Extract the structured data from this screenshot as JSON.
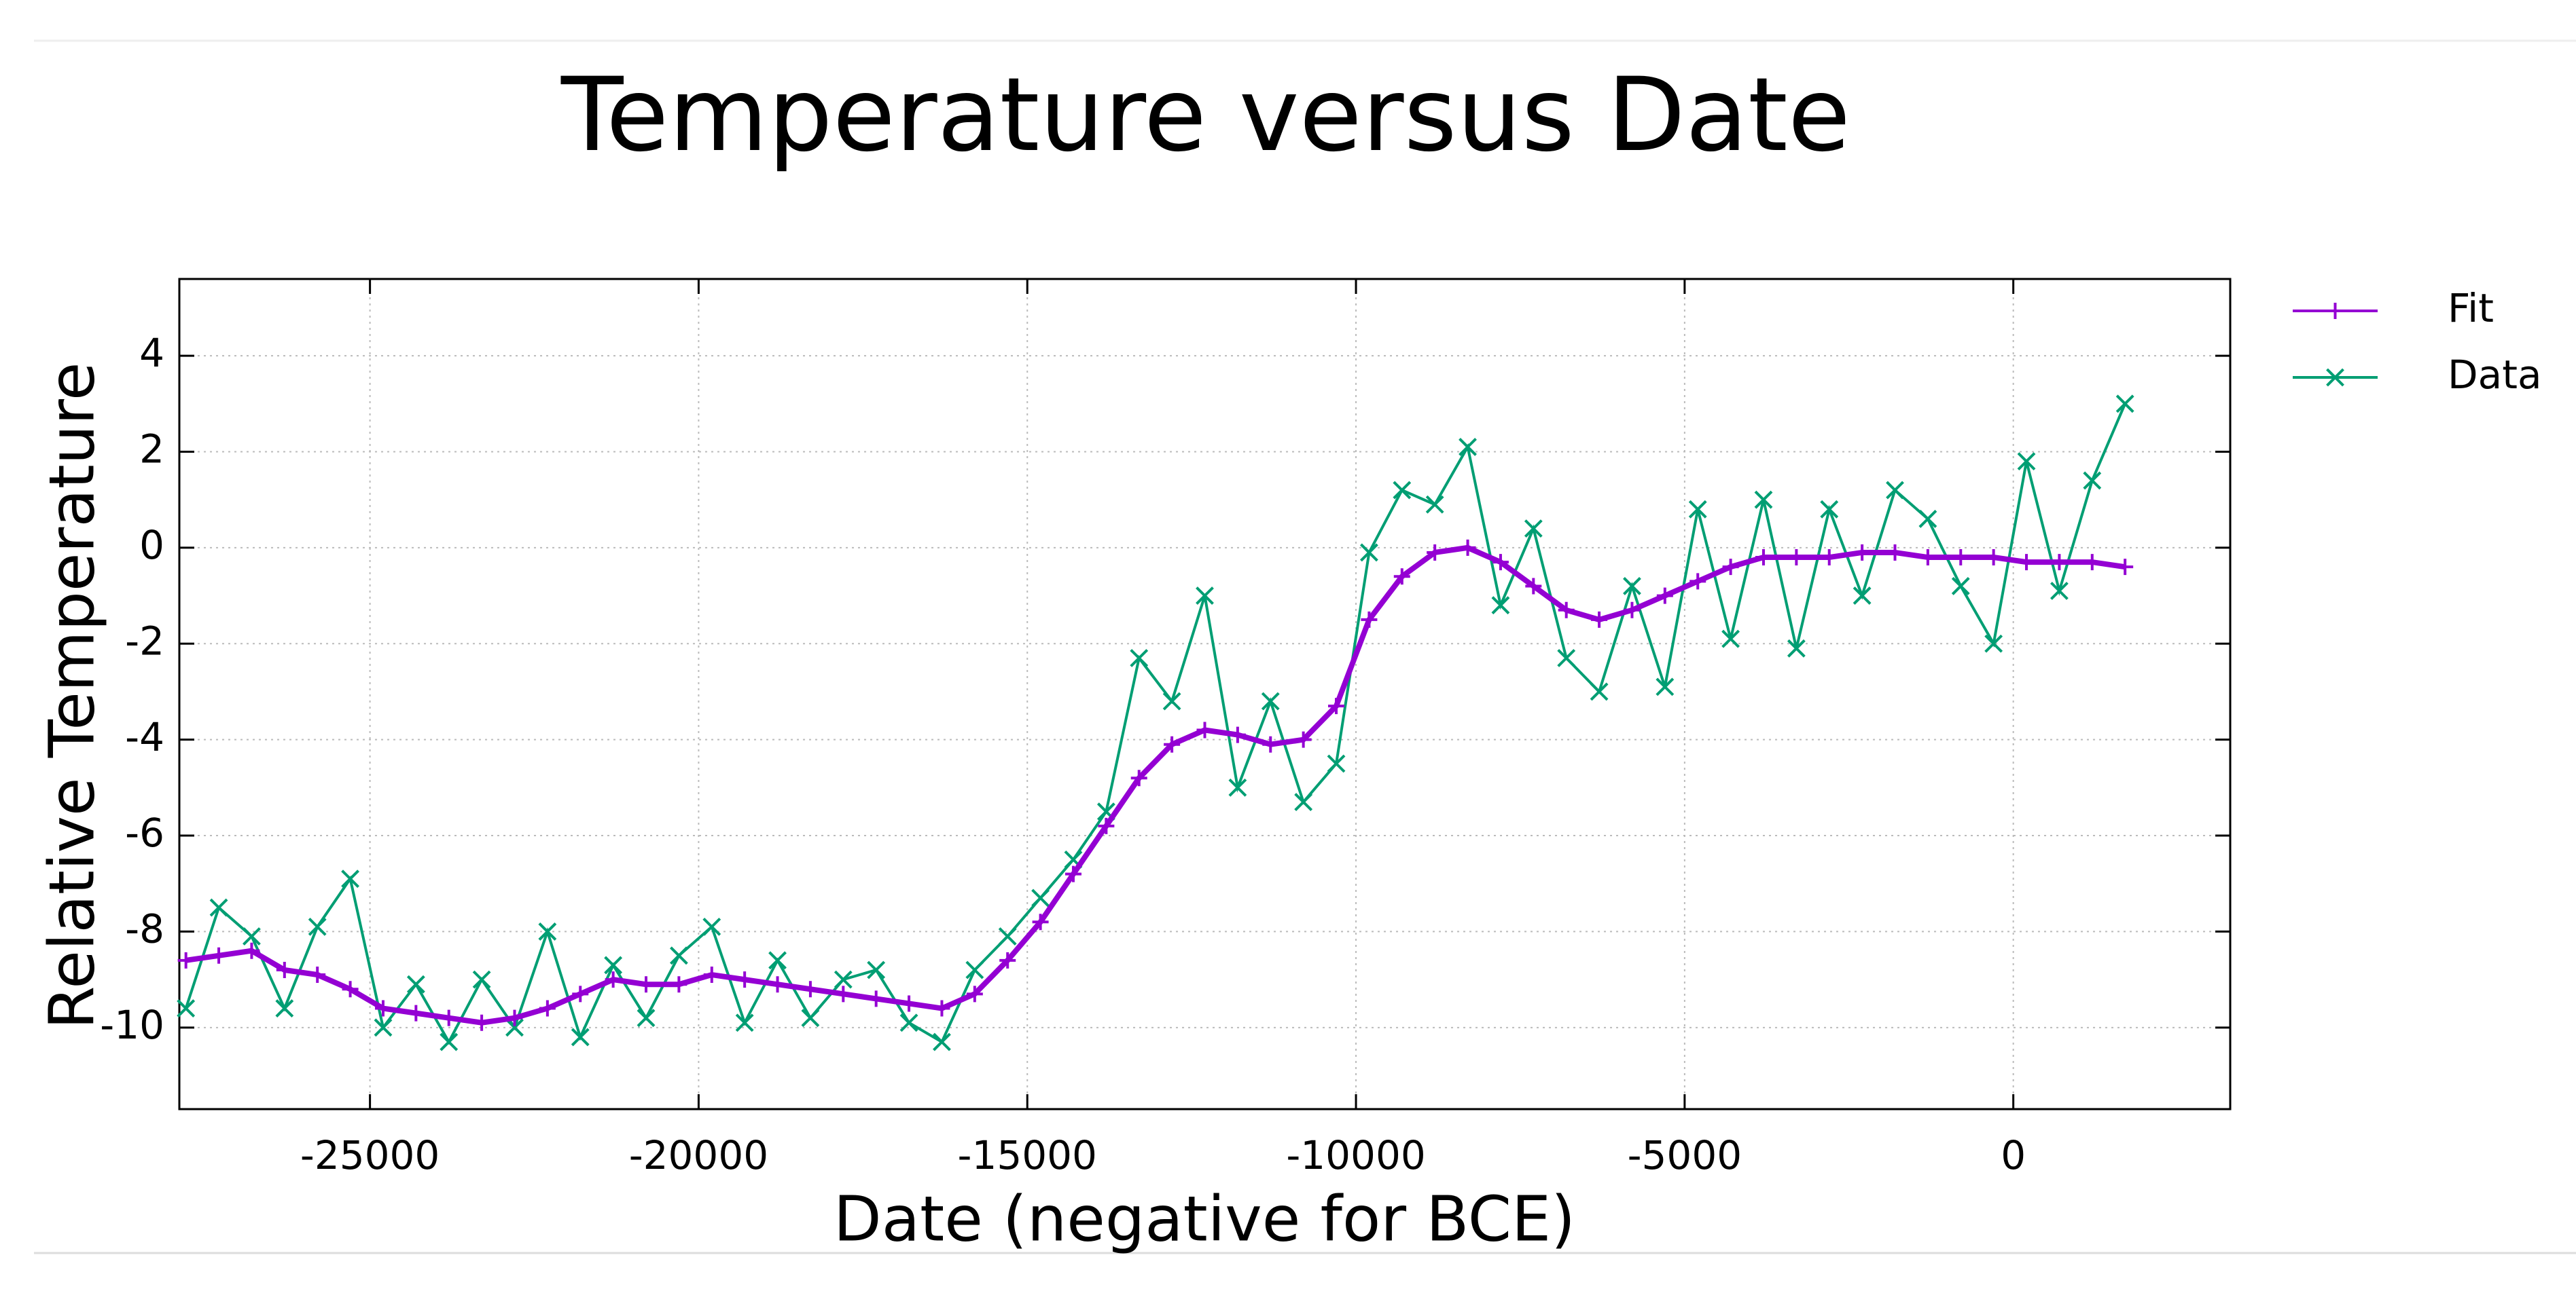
{
  "chart_data": {
    "type": "line",
    "title": "Temperature versus Date",
    "x_label": "Date (negative for BCE)",
    "y_label": "Relative Temperature",
    "x": [
      -27800,
      -27300,
      -26800,
      -26300,
      -25800,
      -25300,
      -24800,
      -24300,
      -23800,
      -23300,
      -22800,
      -22300,
      -21800,
      -21300,
      -20800,
      -20300,
      -19800,
      -19300,
      -18800,
      -18300,
      -17800,
      -17300,
      -16800,
      -16300,
      -15800,
      -15300,
      -14800,
      -14300,
      -13800,
      -13300,
      -12800,
      -12300,
      -11800,
      -11300,
      -10800,
      -10300,
      -9800,
      -9300,
      -8800,
      -8300,
      -7800,
      -7300,
      -6800,
      -6300,
      -5800,
      -5300,
      -4800,
      -4300,
      -3800,
      -3300,
      -2800,
      -2300,
      -1800,
      -1300,
      -800,
      -300,
      200,
      700,
      1200,
      1700
    ],
    "series": [
      {
        "name": "Fit",
        "color": "#9400d3",
        "marker": "+",
        "values": [
          -8.6,
          -8.5,
          -8.4,
          -8.8,
          -8.9,
          -9.2,
          -9.6,
          -9.7,
          -9.8,
          -9.9,
          -9.8,
          -9.6,
          -9.3,
          -9.0,
          -9.1,
          -9.1,
          -8.9,
          -9.0,
          -9.1,
          -9.2,
          -9.3,
          -9.4,
          -9.5,
          -9.6,
          -9.3,
          -8.6,
          -7.8,
          -6.8,
          -5.8,
          -4.8,
          -4.1,
          -3.8,
          -3.9,
          -4.1,
          -4.0,
          -3.3,
          -1.5,
          -0.6,
          -0.1,
          0.0,
          -0.3,
          -0.8,
          -1.3,
          -1.5,
          -1.3,
          -1.0,
          -0.7,
          -0.4,
          -0.2,
          -0.2,
          -0.2,
          -0.1,
          -0.1,
          -0.2,
          -0.2,
          -0.2,
          -0.3,
          -0.3,
          -0.3,
          -0.4
        ]
      },
      {
        "name": "Data",
        "color": "#009e73",
        "marker": "x",
        "values": [
          -9.6,
          -7.5,
          -8.1,
          -9.6,
          -7.9,
          -6.9,
          -10.0,
          -9.1,
          -10.3,
          -9.0,
          -10.0,
          -8.0,
          -10.2,
          -8.7,
          -9.8,
          -8.5,
          -7.9,
          -9.9,
          -8.6,
          -9.8,
          -9.0,
          -8.8,
          -9.9,
          -10.3,
          -8.8,
          -8.1,
          -7.3,
          -6.5,
          -5.5,
          -2.3,
          -3.2,
          -1.0,
          -5.0,
          -3.2,
          -5.3,
          -4.5,
          -0.1,
          1.2,
          0.9,
          2.1,
          -1.2,
          0.4,
          -2.3,
          -3.0,
          -0.8,
          -2.9,
          0.8,
          -1.9,
          1.0,
          -2.1,
          0.8,
          -1.0,
          1.2,
          0.6,
          -0.8,
          -2.0,
          1.8,
          -0.9,
          1.4,
          3.0
        ]
      }
    ],
    "xlim": [
      -27900,
      3300
    ],
    "ylim": [
      -11.7,
      5.6
    ],
    "xticks": [
      -25000,
      -20000,
      -15000,
      -10000,
      -5000,
      0
    ],
    "yticks": [
      -10,
      -8,
      -6,
      -4,
      -2,
      0,
      2,
      4
    ],
    "grid": true,
    "legend": "outside-right"
  }
}
